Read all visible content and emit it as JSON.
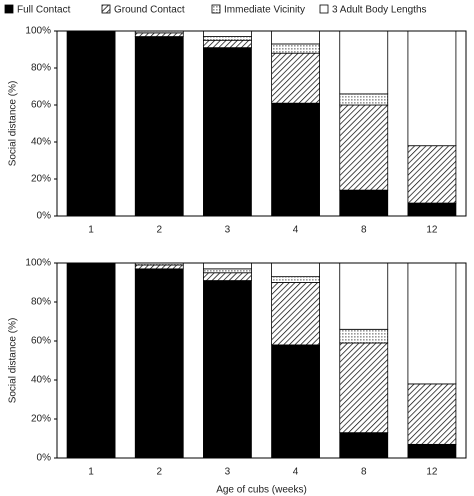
{
  "chart_data": [
    {
      "type": "stacked-bar",
      "legend": "top",
      "ylabel": "Social distance (%)",
      "categories": [
        "1",
        "2",
        "3",
        "4",
        "8",
        "12"
      ],
      "ylim": [
        0,
        100
      ],
      "yticks": [
        {
          "value": 0,
          "label": "0%"
        },
        {
          "value": 20,
          "label": "20%"
        },
        {
          "value": 40,
          "label": "40%"
        },
        {
          "value": 60,
          "label": "60%"
        },
        {
          "value": 80,
          "label": "80%"
        },
        {
          "value": 100,
          "label": "100%"
        }
      ],
      "series": [
        {
          "name": "Full Contact",
          "color": "#000000",
          "pattern": "solid",
          "values": [
            100,
            97,
            91,
            61,
            14,
            7
          ]
        },
        {
          "name": "Ground Contact",
          "color": "#000000",
          "pattern": "diagonal",
          "values": [
            0,
            2,
            4,
            27,
            46,
            31
          ]
        },
        {
          "name": "Immediate Vicinity",
          "color": "#999999",
          "pattern": "dots",
          "values": [
            0,
            1,
            2,
            5,
            6,
            0
          ]
        },
        {
          "name": "3 Adult Body Lengths",
          "color": "#ffffff",
          "pattern": "solid",
          "values": [
            0,
            0,
            3,
            7,
            34,
            62
          ]
        }
      ]
    },
    {
      "type": "stacked-bar",
      "ylabel": "Social distance (%)",
      "xlabel": "Age of cubs (weeks)",
      "categories": [
        "1",
        "2",
        "3",
        "4",
        "8",
        "12"
      ],
      "ylim": [
        0,
        100
      ],
      "yticks": [
        {
          "value": 0,
          "label": "0%"
        },
        {
          "value": 20,
          "label": "20%"
        },
        {
          "value": 40,
          "label": "40%"
        },
        {
          "value": 60,
          "label": "60%"
        },
        {
          "value": 80,
          "label": "80%"
        },
        {
          "value": 100,
          "label": "100%"
        }
      ],
      "series": [
        {
          "color": "#000000",
          "pattern": "solid",
          "values": [
            100,
            97,
            91,
            58,
            13,
            7
          ]
        },
        {
          "color": "#000000",
          "pattern": "diagonal",
          "values": [
            0,
            2,
            4,
            32,
            46,
            31
          ]
        },
        {
          "color": "#999999",
          "pattern": "dots",
          "values": [
            0,
            1,
            2,
            3,
            7,
            0
          ]
        },
        {
          "color": "#ffffff",
          "pattern": "solid",
          "values": [
            0,
            0,
            3,
            7,
            34,
            62
          ]
        }
      ]
    }
  ]
}
